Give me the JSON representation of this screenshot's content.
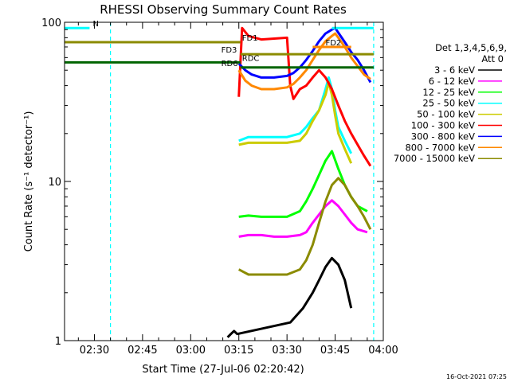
{
  "chart_data": {
    "type": "line",
    "title": "RHESSI Observing Summary Count Rates",
    "xlabel": "Start Time (27-Jul-06 02:20:42)",
    "ylabel": "Count Rate (s⁻¹ detector⁻¹)",
    "y_scale": "log",
    "ylim": [
      1,
      100
    ],
    "x_ticks": [
      "02:30",
      "02:45",
      "03:00",
      "03:15",
      "03:30",
      "03:45",
      "04:00"
    ],
    "x_tick_minutes": [
      30,
      45,
      60,
      75,
      90,
      105,
      120
    ],
    "xlim_minutes": [
      20.7,
      120
    ],
    "y_ticks": [
      1,
      10,
      100
    ],
    "grid": false,
    "legend_position": "right",
    "legend_header": [
      "Det 1,3,4,5,6,9,",
      "Att 0"
    ],
    "series": [
      {
        "name": "3 - 6 keV",
        "color": "#000000",
        "x": [
          71.5,
          72.5,
          73.5,
          74.5,
          91,
          95,
          98,
          100,
          102,
          104,
          106,
          108,
          110
        ],
        "y": [
          1.05,
          1.1,
          1.15,
          1.1,
          1.3,
          1.6,
          2.0,
          2.4,
          2.9,
          3.3,
          3.0,
          2.4,
          1.6
        ]
      },
      {
        "name": "6 - 12 keV",
        "color": "#ff00ff",
        "x": [
          75,
          78,
          82,
          86,
          90,
          94,
          96,
          98,
          100,
          102,
          104,
          106,
          108,
          110,
          112,
          115
        ],
        "y": [
          4.5,
          4.6,
          4.6,
          4.5,
          4.5,
          4.6,
          4.8,
          5.5,
          6.2,
          7.0,
          7.6,
          7.0,
          6.2,
          5.5,
          5.0,
          4.8
        ]
      },
      {
        "name": "12 - 25 keV",
        "color": "#00ff00",
        "x": [
          75,
          78,
          82,
          86,
          90,
          94,
          96,
          98,
          100,
          102,
          104,
          106,
          108,
          110,
          112,
          115
        ],
        "y": [
          6.0,
          6.1,
          6.0,
          6.0,
          6.0,
          6.5,
          7.5,
          9.0,
          11.0,
          13.5,
          15.5,
          12.0,
          9.5,
          8.0,
          7.0,
          6.5
        ]
      },
      {
        "name": "25 - 50 keV",
        "color": "#00ffff",
        "x": [
          75,
          78,
          82,
          86,
          90,
          94,
          96,
          98,
          100,
          102,
          103,
          104,
          105,
          106,
          108,
          110
        ],
        "y": [
          18.0,
          19.0,
          19.0,
          19.0,
          19.0,
          20.0,
          22.0,
          25.0,
          28.0,
          38.0,
          45.0,
          38.0,
          28.0,
          22.0,
          18.0,
          15.0
        ]
      },
      {
        "name": "50 - 100 keV",
        "color": "#cccc00",
        "x": [
          75,
          78,
          82,
          86,
          90,
          94,
          96,
          98,
          100,
          102,
          103,
          104,
          105,
          106,
          108,
          110
        ],
        "y": [
          17.0,
          17.5,
          17.5,
          17.5,
          17.5,
          18.0,
          20.0,
          24.0,
          28.0,
          35.0,
          42.0,
          35.0,
          26.0,
          20.0,
          16.0,
          13.0
        ]
      },
      {
        "name": "100 - 300 keV",
        "color": "#ff0000",
        "x": [
          75,
          76,
          78,
          82,
          86,
          90,
          91,
          92,
          94,
          96,
          98,
          100,
          102,
          104,
          106,
          108,
          110,
          112,
          114,
          116
        ],
        "y": [
          34.0,
          92.0,
          82.0,
          78.0,
          79.0,
          80.0,
          40.0,
          33.0,
          38.0,
          40.0,
          45.0,
          50.0,
          45.0,
          38.0,
          30.0,
          24.0,
          20.0,
          17.0,
          14.5,
          12.5
        ]
      },
      {
        "name": "300 - 800 keV",
        "color": "#0000ff",
        "x": [
          75,
          77,
          79,
          82,
          86,
          90,
          92,
          94,
          96,
          98,
          100,
          102,
          104,
          105,
          106,
          108,
          110,
          112,
          114,
          116
        ],
        "y": [
          55.0,
          50.0,
          47.0,
          45.0,
          45.0,
          46.0,
          48.0,
          52.0,
          58.0,
          66.0,
          76.0,
          85.0,
          90.0,
          92.0,
          86.0,
          75.0,
          65.0,
          58.0,
          50.0,
          42.0
        ]
      },
      {
        "name": "800 - 7000 keV",
        "color": "#ff8800",
        "x": [
          75,
          77,
          79,
          82,
          86,
          90,
          92,
          94,
          96,
          98,
          100,
          102,
          104,
          105,
          106,
          108,
          110,
          112,
          114,
          116
        ],
        "y": [
          50.0,
          43.0,
          40.0,
          38.0,
          38.0,
          39.0,
          41.0,
          45.0,
          50.0,
          58.0,
          67.0,
          76.0,
          82.0,
          85.0,
          80.0,
          70.0,
          60.0,
          53.0,
          47.0,
          44.0
        ]
      },
      {
        "name": "7000 - 15000 keV",
        "color": "#8b8b00",
        "x": [
          75,
          78,
          82,
          86,
          90,
          94,
          96,
          98,
          100,
          102,
          104,
          106,
          108,
          110,
          112,
          114,
          116
        ],
        "y": [
          2.8,
          2.6,
          2.6,
          2.6,
          2.6,
          2.8,
          3.2,
          4.0,
          5.5,
          7.5,
          9.5,
          10.5,
          9.5,
          8.0,
          7.0,
          6.0,
          5.0
        ]
      }
    ],
    "flag_lines": [
      {
        "label": "N",
        "color": "#00ffff",
        "x_start": 20.7,
        "x_end": 28.5,
        "y": 92.0,
        "label_x": 29.5
      },
      {
        "label": "FD1",
        "color": "#8b8b00",
        "x_start": 20.7,
        "x_end": 75.5,
        "y": 75.0,
        "label_x": 76.0
      },
      {
        "label": "FD3",
        "color": "#8b8b00",
        "x_start": 75.5,
        "x_end": 117,
        "y": 63.0,
        "label_x": 69.5
      },
      {
        "label": "RDC",
        "color": "#006400",
        "x_start": 20.7,
        "x_end": 75.5,
        "y": 56.0,
        "label_x": 76.0
      },
      {
        "label": "RD6",
        "color": "#006400",
        "x_start": 75.5,
        "x_end": 117,
        "y": 52.0,
        "label_x": 69.5
      },
      {
        "label": "FD2",
        "color": "#ff8800",
        "x_start": 98,
        "x_end": 110,
        "y": 70.0,
        "label_x": 102
      },
      {
        "label": "",
        "color": "#00ffff",
        "x_start": 104,
        "x_end": 117,
        "y": 92.0,
        "label_x": 104
      }
    ],
    "vertical_markers": [
      {
        "x": 35,
        "color": "#00ffff",
        "style": "dashed"
      },
      {
        "x": 117,
        "color": "#00ffff",
        "style": "dashed"
      }
    ],
    "footer_date": "16-Oct-2021 07:25"
  }
}
